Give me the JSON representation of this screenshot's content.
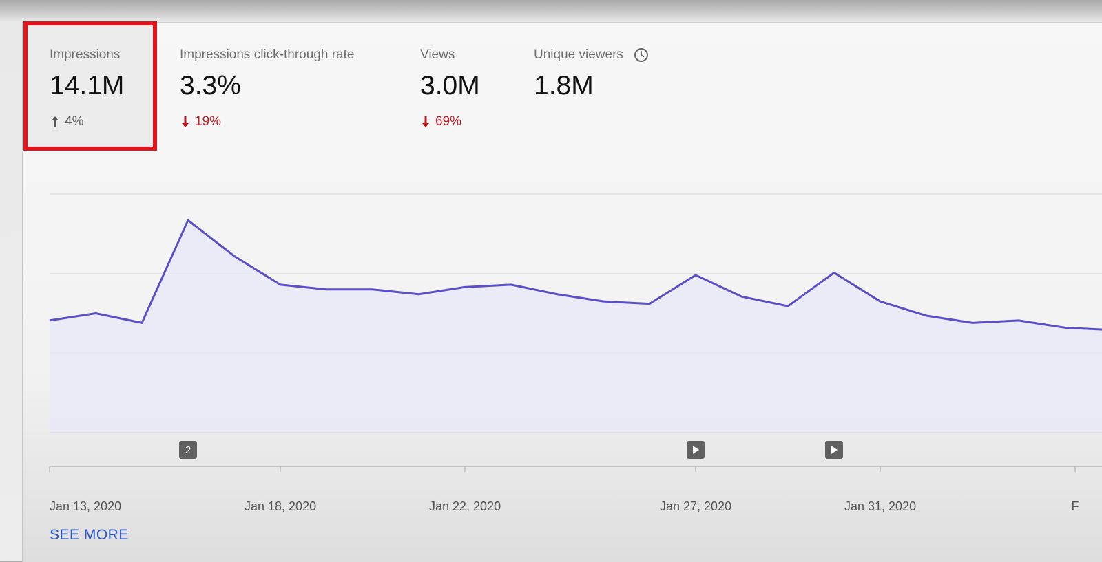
{
  "metrics": [
    {
      "label": "Impressions",
      "value": "14.1M",
      "delta": "4%",
      "direction": "up",
      "selected": true
    },
    {
      "label": "Impressions click-through rate",
      "value": "3.3%",
      "delta": "19%",
      "direction": "down"
    },
    {
      "label": "Views",
      "value": "3.0M",
      "delta": "69%",
      "direction": "down"
    },
    {
      "label": "Unique viewers",
      "value": "1.8M",
      "icon": "clock-icon"
    }
  ],
  "colors": {
    "line": "#5a4fc8",
    "area": "#e9e7f7",
    "selection": "#e2141b",
    "negative": "#c4171e",
    "link": "#2a56c6"
  },
  "chart_data": {
    "type": "area",
    "x": [
      "Jan 13, 2020",
      "Jan 14, 2020",
      "Jan 15, 2020",
      "Jan 16, 2020",
      "Jan 17, 2020",
      "Jan 18, 2020",
      "Jan 19, 2020",
      "Jan 20, 2020",
      "Jan 21, 2020",
      "Jan 22, 2020",
      "Jan 23, 2020",
      "Jan 24, 2020",
      "Jan 25, 2020",
      "Jan 26, 2020",
      "Jan 27, 2020",
      "Jan 28, 2020",
      "Jan 29, 2020",
      "Jan 30, 2020",
      "Jan 31, 2020",
      "Feb 1, 2020",
      "Feb 2, 2020",
      "Feb 3, 2020",
      "Feb 4, 2020",
      "Feb 5, 2020"
    ],
    "series": [
      {
        "values": [
          0.47,
          0.5,
          0.46,
          0.89,
          0.74,
          0.62,
          0.6,
          0.6,
          0.58,
          0.61,
          0.62,
          0.58,
          0.55,
          0.54,
          0.66,
          0.57,
          0.53,
          0.67,
          0.55,
          0.49,
          0.46,
          0.47,
          0.44,
          0.43
        ]
      }
    ],
    "xticks": [
      "Jan 13, 2020",
      "Jan 18, 2020",
      "Jan 22, 2020",
      "Jan 27, 2020",
      "Jan 31, 2020",
      "F"
    ],
    "ylim": [
      0,
      1
    ],
    "grid": true,
    "markers": [
      {
        "date": "Jan 16, 2020",
        "kind": "badge",
        "label": "2"
      },
      {
        "date": "Jan 27, 2020",
        "kind": "play-icon"
      },
      {
        "date": "Jan 30, 2020",
        "kind": "play-icon"
      }
    ]
  },
  "see_more": "SEE MORE"
}
